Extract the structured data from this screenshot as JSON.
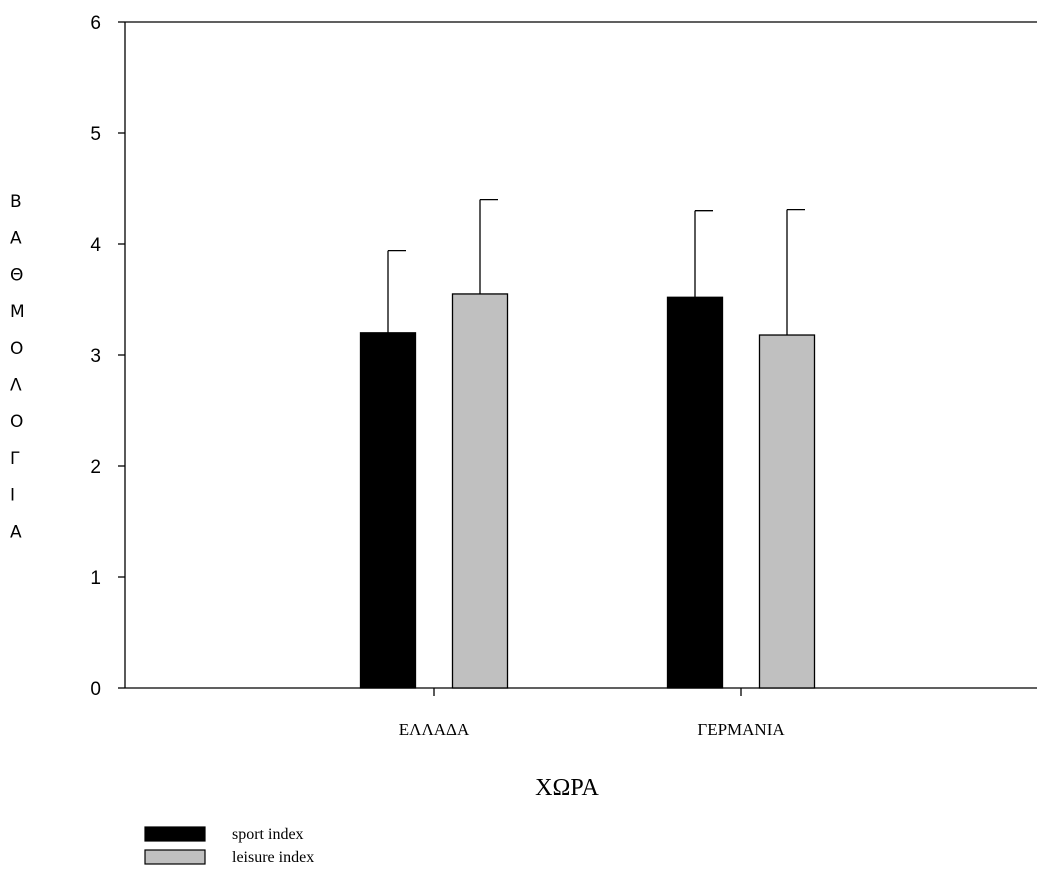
{
  "chart_data": {
    "type": "bar",
    "categories": [
      "ΕΛΛΑΔΑ",
      "ΓΕΡΜΑΝΙΑ"
    ],
    "series": [
      {
        "name": "sport index",
        "values": [
          3.2,
          3.52
        ],
        "error": [
          0.74,
          0.78
        ],
        "color": "#000000"
      },
      {
        "name": "leisure index",
        "values": [
          3.55,
          3.18
        ],
        "error": [
          0.85,
          1.13
        ],
        "color": "#c0c0c0"
      }
    ],
    "xlabel": "ΧΩΡΑ",
    "ylabel": "ΒΑΘΜΟΛΟΓΙΑ",
    "ylim": [
      0,
      6
    ],
    "yticks": [
      0,
      1,
      2,
      3,
      4,
      5,
      6
    ],
    "grid": false,
    "legend_position": "bottom-left"
  }
}
